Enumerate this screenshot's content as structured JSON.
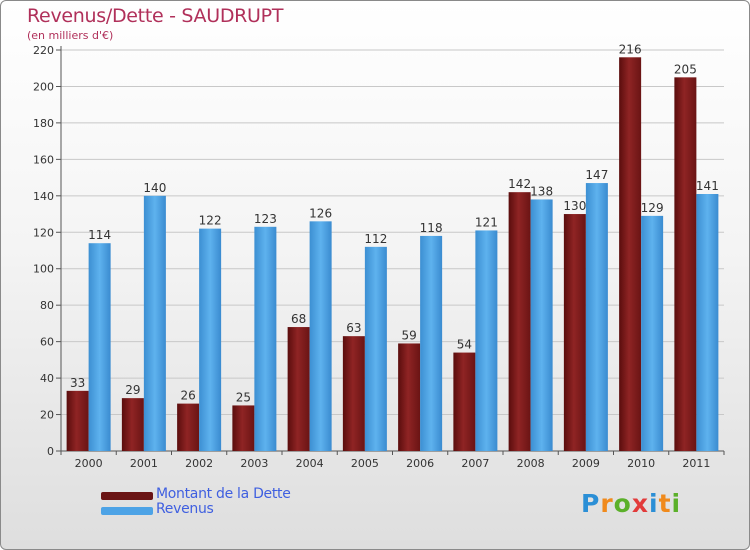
{
  "chart_data": {
    "type": "bar",
    "title": "Revenus/Dette - SAUDRUPT",
    "subtitle": "(en milliers d'€)",
    "categories": [
      "2000",
      "2001",
      "2002",
      "2003",
      "2004",
      "2005",
      "2006",
      "2007",
      "2008",
      "2009",
      "2010",
      "2011"
    ],
    "series": [
      {
        "name": "Montant de la Dette",
        "color": "#8b1c1c",
        "values": [
          33,
          29,
          26,
          25,
          68,
          63,
          59,
          54,
          142,
          130,
          216,
          205
        ]
      },
      {
        "name": "Revenus",
        "color": "#4da3e6",
        "values": [
          114,
          140,
          122,
          123,
          126,
          112,
          118,
          121,
          138,
          147,
          129,
          141
        ]
      }
    ],
    "yticks": [
      0,
      20,
      40,
      60,
      80,
      100,
      120,
      140,
      160,
      180,
      200,
      220
    ],
    "ylim": [
      0,
      220
    ],
    "grid": true,
    "legend_position": "bottom-left"
  },
  "logo": {
    "letters": [
      "P",
      "r",
      "o",
      "x",
      "i",
      "t",
      "i"
    ],
    "colors": [
      "#2b8fd6",
      "#f08a1c",
      "#5bb02a",
      "#e23b3b",
      "#2b8fd6",
      "#f08a1c",
      "#5bb02a"
    ]
  }
}
